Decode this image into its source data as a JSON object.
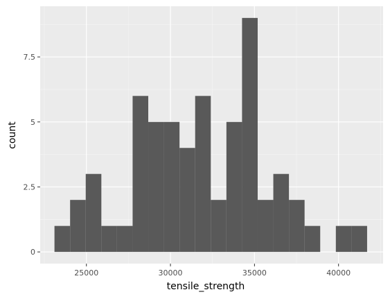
{
  "chart_data": {
    "type": "bar",
    "subtype": "histogram",
    "xlabel": "tensile_strength",
    "ylabel": "count",
    "xlim": [
      22250,
      42650
    ],
    "ylim": [
      -0.45,
      9.45
    ],
    "x_ticks": [
      25000,
      30000,
      35000,
      40000
    ],
    "y_ticks": [
      0,
      2.5,
      5,
      7.5
    ],
    "x_tick_labels": [
      "25000",
      "30000",
      "35000",
      "40000"
    ],
    "y_tick_labels": [
      "0",
      "2.5",
      "5",
      "7.5"
    ],
    "grid": true,
    "legend": "none",
    "colors": {
      "panel_background": "#ebebeb",
      "grid_major": "#ffffff",
      "grid_minor": "#f5f5f5",
      "bar_fill": "#595959",
      "tick_mark": "#333333"
    },
    "bins": [
      {
        "x0": 23100,
        "x1": 24030,
        "count": 1
      },
      {
        "x0": 24030,
        "x1": 24960,
        "count": 2
      },
      {
        "x0": 24960,
        "x1": 25890,
        "count": 3
      },
      {
        "x0": 25890,
        "x1": 26820,
        "count": 1
      },
      {
        "x0": 26820,
        "x1": 27750,
        "count": 1
      },
      {
        "x0": 27750,
        "x1": 28680,
        "count": 6
      },
      {
        "x0": 28680,
        "x1": 29610,
        "count": 5
      },
      {
        "x0": 29610,
        "x1": 30540,
        "count": 5
      },
      {
        "x0": 30540,
        "x1": 31470,
        "count": 4
      },
      {
        "x0": 31470,
        "x1": 32400,
        "count": 6
      },
      {
        "x0": 32400,
        "x1": 33330,
        "count": 2
      },
      {
        "x0": 33330,
        "x1": 34260,
        "count": 5
      },
      {
        "x0": 34260,
        "x1": 35190,
        "count": 9
      },
      {
        "x0": 35190,
        "x1": 36120,
        "count": 2
      },
      {
        "x0": 36120,
        "x1": 37050,
        "count": 3
      },
      {
        "x0": 37050,
        "x1": 37980,
        "count": 2
      },
      {
        "x0": 37980,
        "x1": 38910,
        "count": 1
      },
      {
        "x0": 38910,
        "x1": 39840,
        "count": 0
      },
      {
        "x0": 39840,
        "x1": 40770,
        "count": 1
      },
      {
        "x0": 40770,
        "x1": 41700,
        "count": 1
      }
    ]
  }
}
